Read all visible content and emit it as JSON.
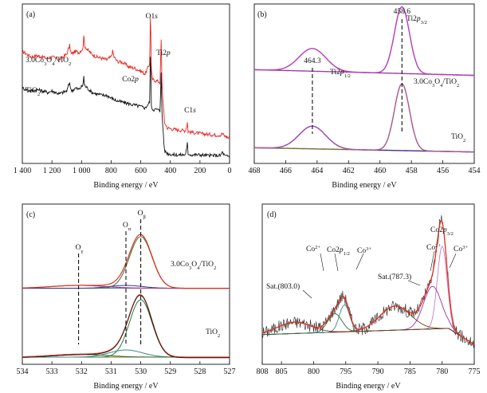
{
  "chart_data": [
    {
      "id": "a",
      "type": "line",
      "panel_label": "(a)",
      "xlabel": "Binding energy / eV",
      "xlim": [
        1400,
        0
      ],
      "xticks": [
        "1 400",
        "1 200",
        "1 000",
        "800",
        "600",
        "400",
        "200",
        "0"
      ],
      "xtick_values": [
        1400,
        1200,
        1000,
        800,
        600,
        400,
        200,
        0
      ],
      "series": [
        {
          "name": "3.0Co3O4/TiO2",
          "color": "#e8231e",
          "x": [
            1400,
            1340,
            1300,
            1230,
            1200,
            1150,
            1100,
            1080,
            1070,
            1040,
            1020,
            990,
            985,
            980,
            960,
            930,
            900,
            860,
            830,
            800,
            790,
            780,
            760,
            720,
            680,
            640,
            600,
            570,
            540,
            535,
            532,
            528,
            520,
            490,
            470,
            462,
            459,
            455,
            440,
            420,
            380,
            340,
            300,
            290,
            285,
            280,
            260,
            200,
            150,
            100,
            60,
            50,
            30,
            20,
            10,
            0
          ],
          "y": [
            0.74,
            0.7,
            0.71,
            0.69,
            0.7,
            0.68,
            0.72,
            0.78,
            0.72,
            0.74,
            0.73,
            0.76,
            0.86,
            0.78,
            0.75,
            0.72,
            0.7,
            0.69,
            0.68,
            0.7,
            0.74,
            0.7,
            0.67,
            0.66,
            0.63,
            0.62,
            0.6,
            0.58,
            0.65,
            0.97,
            0.88,
            0.6,
            0.54,
            0.53,
            0.52,
            0.82,
            0.62,
            0.48,
            0.24,
            0.2,
            0.19,
            0.185,
            0.18,
            0.21,
            0.24,
            0.175,
            0.17,
            0.16,
            0.155,
            0.15,
            0.15,
            0.16,
            0.14,
            0.14,
            0.13,
            0.13
          ]
        },
        {
          "name": "TiO2",
          "color": "#111111",
          "x": [
            1400,
            1340,
            1300,
            1230,
            1200,
            1150,
            1100,
            1080,
            1070,
            1040,
            1020,
            990,
            985,
            980,
            960,
            930,
            900,
            860,
            830,
            800,
            780,
            760,
            720,
            680,
            640,
            600,
            570,
            540,
            535,
            532,
            528,
            520,
            490,
            470,
            462,
            459,
            455,
            440,
            420,
            380,
            340,
            300,
            290,
            285,
            280,
            260,
            200,
            150,
            100,
            60,
            50,
            30,
            20,
            10,
            0
          ],
          "y": [
            0.48,
            0.46,
            0.47,
            0.45,
            0.46,
            0.44,
            0.46,
            0.52,
            0.46,
            0.48,
            0.47,
            0.5,
            0.57,
            0.5,
            0.48,
            0.45,
            0.44,
            0.43,
            0.43,
            0.41,
            0.4,
            0.39,
            0.38,
            0.37,
            0.36,
            0.35,
            0.34,
            0.38,
            0.7,
            0.62,
            0.36,
            0.33,
            0.33,
            0.32,
            0.6,
            0.4,
            0.28,
            0.04,
            0.02,
            0.01,
            0.01,
            0.01,
            0.05,
            0.09,
            0.02,
            0.01,
            0.01,
            0.005,
            0.005,
            0.005,
            0.03,
            0.0,
            0.0,
            0.0,
            0.0
          ]
        }
      ],
      "annotations": [
        {
          "text": "O1",
          "it": "s",
          "x": 535,
          "y": 1.0
        },
        {
          "text": "Ti2",
          "it": "p",
          "x": 462,
          "y": 0.87
        },
        {
          "text": "C1",
          "it": "s",
          "x": 285,
          "y": 0.25
        },
        {
          "text": "Co2",
          "it": "p",
          "x": 790,
          "y": 0.77
        }
      ],
      "legend_labels": [
        {
          "text": "3.0Co",
          "sub": "3",
          "text2": "O",
          "sub2": "4",
          "text3": "/TiO",
          "sub3": "2"
        },
        {
          "text": "TiO",
          "sub": "2"
        }
      ]
    },
    {
      "id": "b",
      "type": "line",
      "panel_label": "(b)",
      "xlabel": "Binding energy / eV",
      "xlim": [
        468,
        454
      ],
      "xticks": [
        "468",
        "466",
        "464",
        "462",
        "460",
        "458",
        "456",
        "454"
      ],
      "xtick_values": [
        468,
        466,
        464,
        462,
        460,
        458,
        456,
        454
      ],
      "peaks_upper": {
        "baseline_left": 0.61,
        "baseline_right": 0.57,
        "p1": {
          "center": 464.3,
          "height": 0.16,
          "width": 0.85
        },
        "p3": {
          "center": 458.6,
          "height": 0.47,
          "width": 0.48
        }
      },
      "peaks_lower": {
        "baseline_left": 0.06,
        "baseline_right": 0.03,
        "p1": {
          "center": 464.3,
          "height": 0.16,
          "width": 0.85
        },
        "p3": {
          "center": 458.6,
          "height": 0.47,
          "width": 0.48
        }
      },
      "peak_labels": [
        {
          "value": "464.3",
          "x": 464.3
        },
        {
          "value": "458.6",
          "x": 458.6
        }
      ],
      "line_labels": [
        {
          "text": "Ti2",
          "it": "p",
          "sub": "1/2"
        },
        {
          "text": "Ti2",
          "it": "p",
          "sub": "3/2"
        }
      ],
      "legend_labels": [
        {
          "text": "3.0Co",
          "sub": "3",
          "text2": "O",
          "sub2": "4",
          "text3": "/TiO",
          "sub3": "2"
        },
        {
          "text": "TiO",
          "sub": "2"
        }
      ]
    },
    {
      "id": "c",
      "type": "line",
      "panel_label": "(c)",
      "xlabel": "Binding energy / eV",
      "xlim": [
        534,
        527
      ],
      "xticks": [
        "534",
        "533",
        "532",
        "531",
        "530",
        "529",
        "528",
        "527"
      ],
      "xtick_values": [
        534,
        533,
        532,
        531,
        530,
        529,
        528,
        527
      ],
      "peaks": {
        "beta": 530.0,
        "alpha": 530.5,
        "gamma": 532.1
      },
      "peak_labels": [
        {
          "text": "O",
          "sub": "γ",
          "x": 532.1
        },
        {
          "text": "O",
          "sub": "α",
          "x": 530.5
        },
        {
          "text": "O",
          "sub": "β",
          "x": 530.0
        }
      ],
      "legend_labels": [
        {
          "text": "3.0Co",
          "sub": "3",
          "text2": "O",
          "sub2": "4",
          "text3": "/TiO",
          "sub3": "2"
        },
        {
          "text": "TiO",
          "sub": "2"
        }
      ]
    },
    {
      "id": "d",
      "type": "line",
      "panel_label": "(d)",
      "xlabel": "Binding energy / eV",
      "xlim": [
        808,
        775
      ],
      "xticks": [
        "808",
        "805",
        "800",
        "795",
        "790",
        "785",
        "780",
        "775"
      ],
      "xtick_values": [
        808,
        805,
        800,
        795,
        790,
        785,
        780,
        775
      ],
      "components": [
        {
          "center": 780.0,
          "height": 0.58,
          "width": 0.75,
          "color": "#c080c8"
        },
        {
          "center": 781.5,
          "height": 0.3,
          "width": 1.4,
          "color": "#a030a0"
        },
        {
          "center": 787.3,
          "height": 0.17,
          "width": 2.4,
          "color": "#7a3a1a"
        },
        {
          "center": 795.2,
          "height": 0.19,
          "width": 0.8,
          "color": "#3a8a8a"
        },
        {
          "center": 796.7,
          "height": 0.13,
          "width": 1.1,
          "color": "#2f6e3c"
        },
        {
          "center": 803.0,
          "height": 0.08,
          "width": 2.6,
          "color": "#7a3a1a"
        }
      ],
      "annotations": [
        {
          "text": "Co2",
          "it": "p",
          "sub": "3/2"
        },
        {
          "text": "Co",
          "sup": "3+",
          "pos": "right"
        },
        {
          "text": "Co",
          "sup": "2+",
          "pos": "mid"
        },
        {
          "text": "Sat.(787.3)"
        },
        {
          "text": "Co",
          "sup": "3+",
          "pos": "low"
        },
        {
          "text": "Co2",
          "it": "p",
          "sub": "1/2"
        },
        {
          "text": "Co",
          "sup": "2+",
          "pos": "left"
        },
        {
          "text": "Sat.(803.0)"
        }
      ]
    }
  ]
}
